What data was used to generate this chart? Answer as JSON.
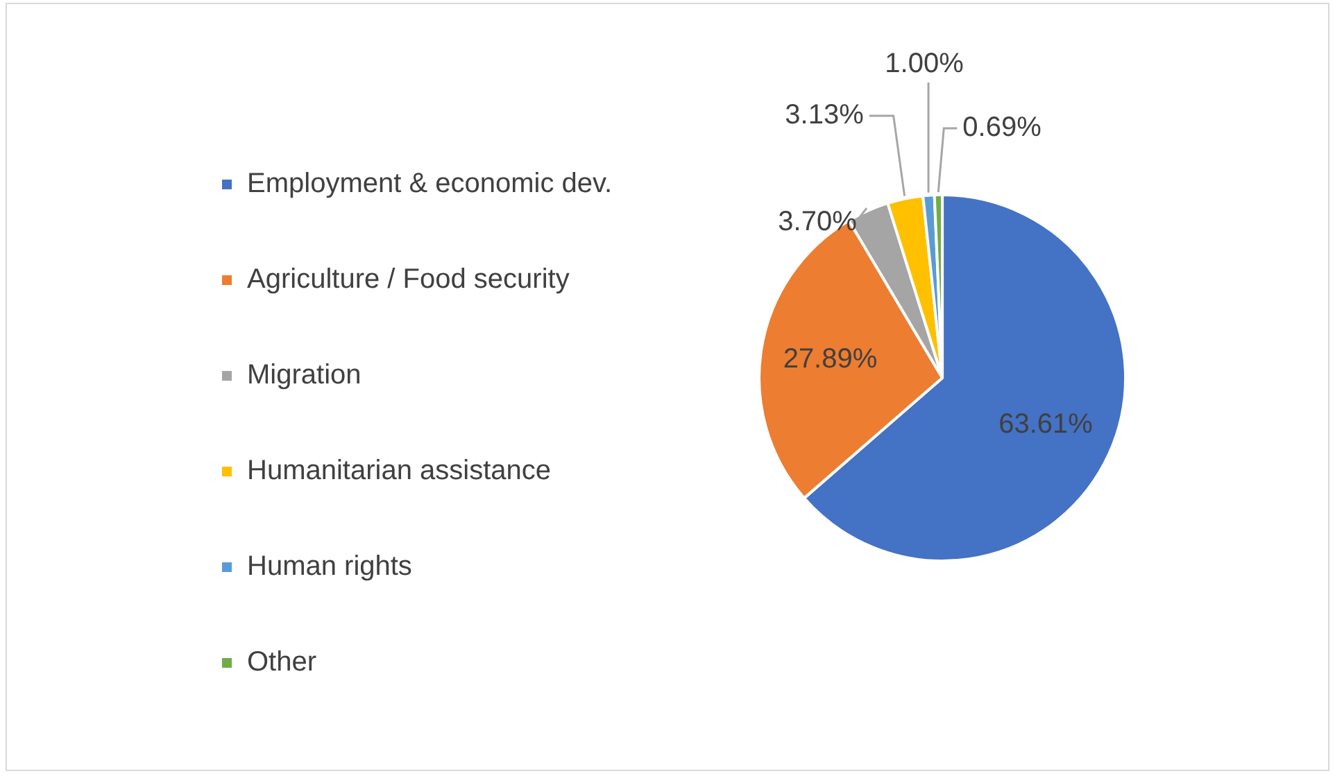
{
  "chart_data": {
    "type": "pie",
    "categories": [
      "Employment & economic dev.",
      "Agriculture / Food security",
      "Migration",
      "Humanitarian assistance",
      "Human rights",
      "Other"
    ],
    "values": [
      63.61,
      27.89,
      3.7,
      3.13,
      1.0,
      0.69
    ],
    "colors": [
      "#4472c4",
      "#ed7d31",
      "#a5a5a5",
      "#ffc000",
      "#5b9bd5",
      "#70ad47"
    ],
    "value_labels": [
      "63.61%",
      "27.89%",
      "3.70%",
      "3.13%",
      "1.00%",
      "0.69%"
    ],
    "legend": "left"
  }
}
